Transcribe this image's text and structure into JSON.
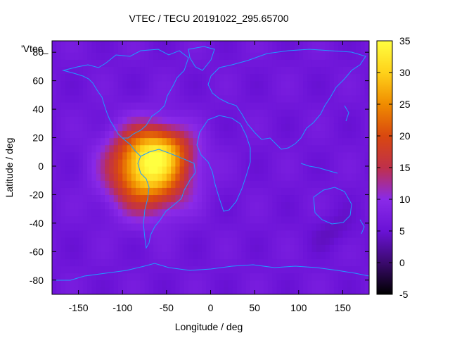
{
  "chart_data": {
    "type": "heatmap",
    "title": "VTEC / TECU 20191022_295.65700",
    "xlabel": "Longitude / deg",
    "ylabel": "Latitude / deg",
    "legend_label": "'Vtec_",
    "xlim": [
      -180,
      180
    ],
    "ylim": [
      -90,
      88
    ],
    "xticks": [
      -150,
      -100,
      -50,
      0,
      50,
      100,
      150
    ],
    "xtick_labels": [
      "-150",
      "-100",
      "-50",
      "0",
      "50",
      "100",
      "150"
    ],
    "yticks": [
      -80,
      -60,
      -40,
      -20,
      0,
      20,
      40,
      60,
      80
    ],
    "ytick_labels": [
      "-80",
      "-60",
      "-40",
      "-20",
      "0",
      "20",
      "40",
      "60",
      "80"
    ],
    "colorbar": {
      "range": [
        -5,
        35
      ],
      "ticks": [
        -5,
        0,
        5,
        10,
        15,
        20,
        25,
        30,
        35
      ],
      "tick_labels": [
        "-5",
        "0",
        "5",
        "10",
        "15",
        "20",
        "25",
        "30",
        "35"
      ],
      "palette": [
        "#000000",
        "#3b0a6e",
        "#6a12d6",
        "#8a2ae8",
        "#c0304a",
        "#d9480f",
        "#f08c00",
        "#ffd21a",
        "#ffff40"
      ]
    },
    "field": {
      "background_tecu": 6,
      "anomaly": [
        {
          "lon": -70,
          "lat": -2,
          "lon_spread": 42,
          "lat_spread": 26,
          "peak_tecu": 27
        },
        {
          "lon": -60,
          "lat": 15,
          "lon_spread": 35,
          "lat_spread": 14,
          "peak_tecu": 6
        },
        {
          "lon": -45,
          "lat": 10,
          "lon_spread": 25,
          "lat_spread": 14,
          "peak_tecu": 3
        },
        {
          "lon": 140,
          "lat": -45,
          "lon_spread": 25,
          "lat_spread": 12,
          "peak_tecu": -2
        }
      ]
    }
  }
}
